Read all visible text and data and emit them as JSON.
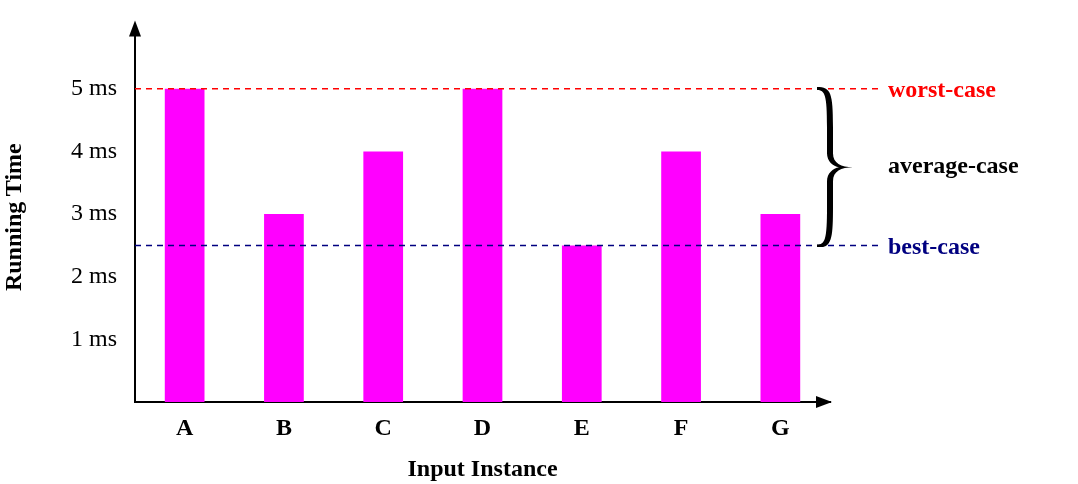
{
  "chart_data": {
    "type": "bar",
    "xlabel": "Input Instance",
    "ylabel": "Running Time",
    "categories": [
      "A",
      "B",
      "C",
      "D",
      "E",
      "F",
      "G"
    ],
    "values": [
      5,
      3,
      4,
      5,
      2.5,
      4,
      3
    ],
    "color": "#ff00ff",
    "ylim": [
      0,
      5.9
    ],
    "yticks": [
      {
        "value": 1,
        "label": "1 ms"
      },
      {
        "value": 2,
        "label": "2 ms"
      },
      {
        "value": 3,
        "label": "3 ms"
      },
      {
        "value": 4,
        "label": "4 ms"
      },
      {
        "value": 5,
        "label": "5 ms"
      }
    ],
    "ref_lines": [
      {
        "axis": "y",
        "value": 5,
        "label": "worst-case",
        "color": "#ff0000",
        "line_style": "dashed"
      },
      {
        "axis": "y",
        "value": 2.5,
        "label": "best-case",
        "color": "#000080",
        "line_style": "dashed"
      }
    ],
    "annotations": [
      "average-case"
    ],
    "grid": false,
    "legend": false
  }
}
